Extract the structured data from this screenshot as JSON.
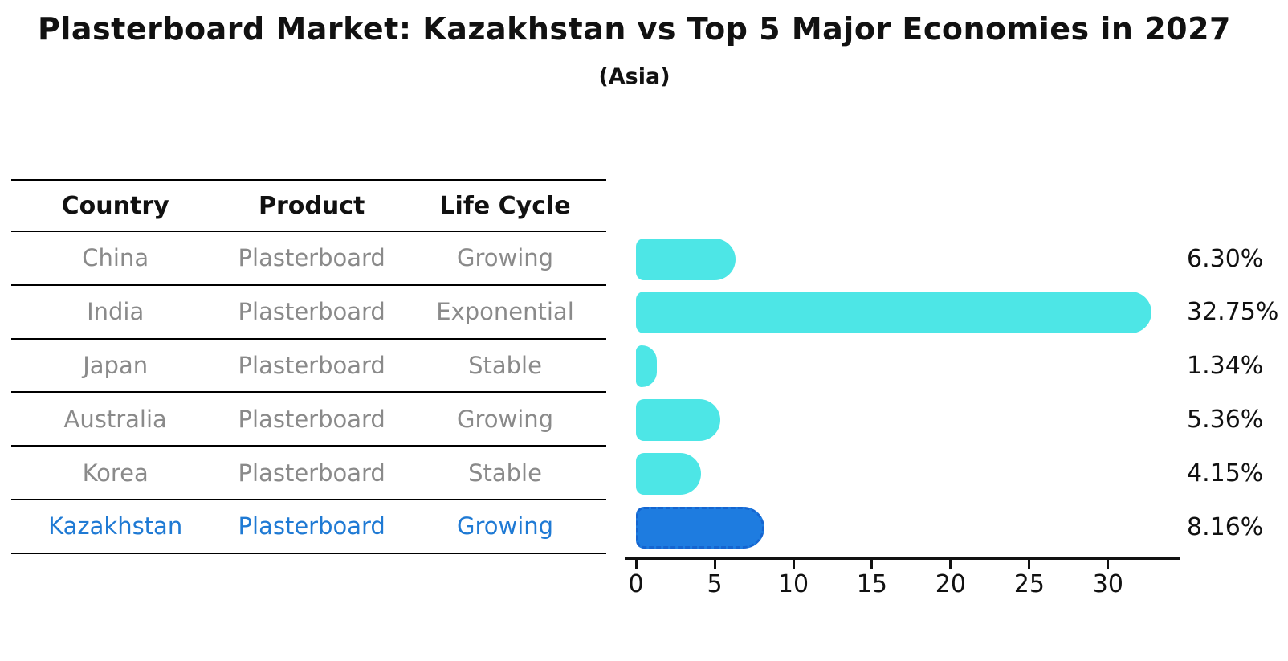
{
  "title": "Plasterboard Market: Kazakhstan vs Top 5 Major Economies in 2027",
  "subtitle": "(Asia)",
  "table": {
    "headers": [
      "Country",
      "Product",
      "Life Cycle"
    ],
    "rows": [
      {
        "country": "China",
        "product": "Plasterboard",
        "life_cycle": "Growing",
        "highlight": false
      },
      {
        "country": "India",
        "product": "Plasterboard",
        "life_cycle": "Exponential",
        "highlight": false
      },
      {
        "country": "Japan",
        "product": "Plasterboard",
        "life_cycle": "Stable",
        "highlight": false
      },
      {
        "country": "Australia",
        "product": "Plasterboard",
        "life_cycle": "Growing",
        "highlight": false
      },
      {
        "country": "Korea",
        "product": "Plasterboard",
        "life_cycle": "Stable",
        "highlight": false
      },
      {
        "country": "Kazakhstan",
        "product": "Plasterboard",
        "life_cycle": "Growing",
        "highlight": true
      }
    ]
  },
  "chart_data": {
    "type": "bar",
    "orientation": "horizontal",
    "title": "Plasterboard Market: Kazakhstan vs Top 5 Major Economies in 2027",
    "subtitle": "(Asia)",
    "categories": [
      "China",
      "India",
      "Japan",
      "Australia",
      "Korea",
      "Kazakhstan"
    ],
    "values": [
      6.3,
      32.75,
      1.34,
      5.36,
      4.15,
      8.16
    ],
    "value_labels": [
      "6.30%",
      "32.75%",
      "1.34%",
      "5.36%",
      "4.15%",
      "8.16%"
    ],
    "xticks": [
      0,
      5,
      10,
      15,
      20,
      25,
      30
    ],
    "xlim": [
      0,
      34.6
    ],
    "grid": false,
    "legend": false,
    "bar_color": "#4DE6E6",
    "highlight_index": 5,
    "highlight_color": "#1E7CE0",
    "highlight_border": "#1565D0",
    "highlight_text_color": "#1F7AD4",
    "axis_color": "#111111",
    "row_text_color": "#8a8a8a"
  }
}
